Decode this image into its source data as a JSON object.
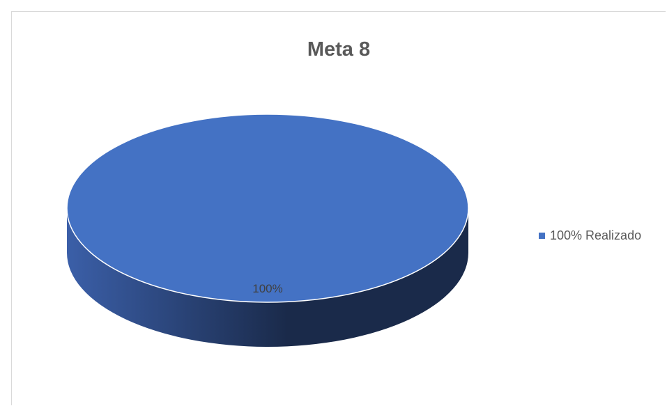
{
  "chart_data": {
    "type": "pie",
    "title": "Meta 8",
    "categories": [
      "100% Realizado"
    ],
    "values": [
      100
    ],
    "data_labels": [
      "100%"
    ],
    "legend": {
      "placement": "right",
      "entries": [
        "100% Realizado"
      ]
    },
    "style": "3d",
    "colors": {
      "top": "#4472C4",
      "side_light": "#3B5FA8",
      "side_dark": "#1A2A4A",
      "edge": "#ffffff"
    }
  }
}
